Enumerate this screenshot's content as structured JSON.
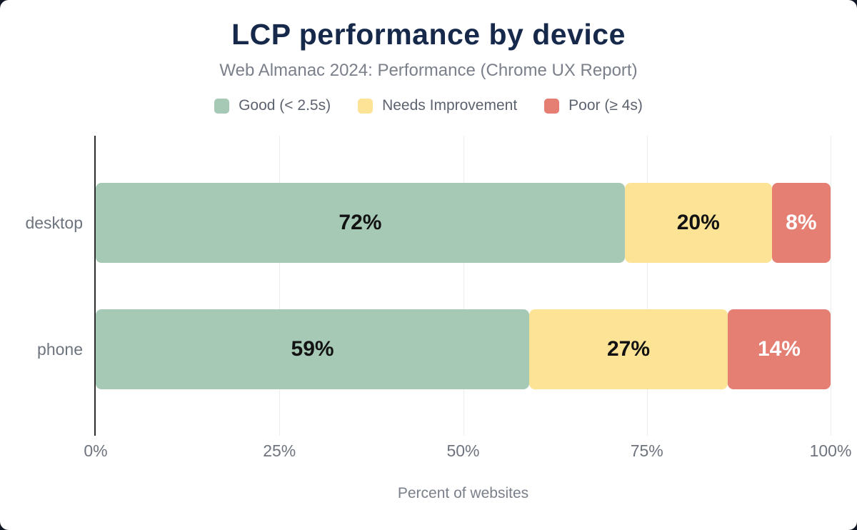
{
  "title": "LCP performance by device",
  "subtitle": "Web Almanac 2024: Performance (Chrome UX Report)",
  "legend": [
    {
      "label": "Good (< 2.5s)",
      "color": "#a6c9b5"
    },
    {
      "label": "Needs Improvement",
      "color": "#fce396"
    },
    {
      "label": "Poor (≥ 4s)",
      "color": "#e57e73"
    }
  ],
  "chart_data": {
    "type": "bar",
    "orientation": "horizontal",
    "stacked": true,
    "categories": [
      "desktop",
      "phone"
    ],
    "series": [
      {
        "name": "Good (< 2.5s)",
        "color": "#a6c9b5",
        "values": [
          72,
          59
        ],
        "label_color": "#121212"
      },
      {
        "name": "Needs Improvement",
        "color": "#fce396",
        "values": [
          20,
          27
        ],
        "label_color": "#121212"
      },
      {
        "name": "Poor (≥ 4s)",
        "color": "#e57e73",
        "values": [
          8,
          14
        ],
        "label_color": "#ffffff"
      }
    ],
    "x_ticks": [
      "0%",
      "25%",
      "50%",
      "75%",
      "100%"
    ],
    "xlim": [
      0,
      100
    ],
    "xlabel": "Percent of websites",
    "value_suffix": "%",
    "grid": true,
    "legend_position": "top"
  }
}
